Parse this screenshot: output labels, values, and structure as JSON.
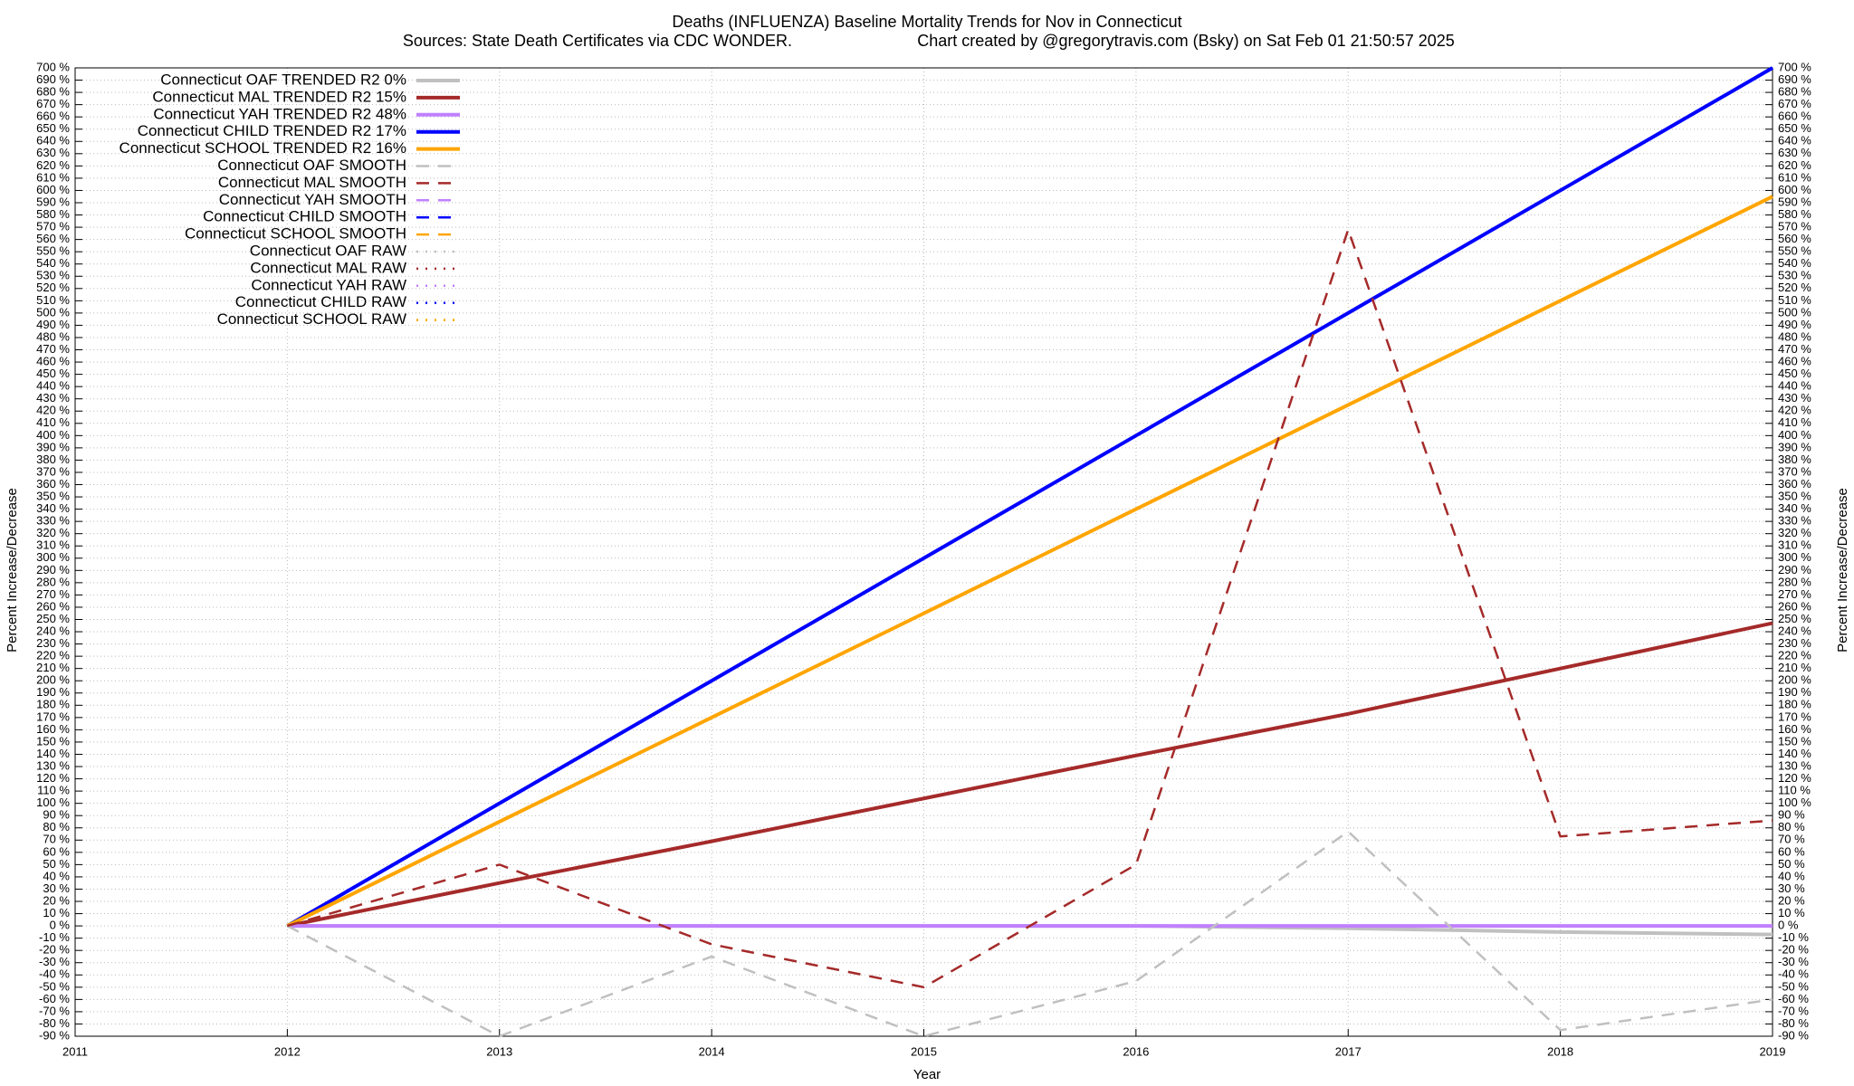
{
  "chart_data": {
    "type": "line",
    "title": "Deaths (INFLUENZA)  Baseline Mortality Trends for Nov in Connecticut",
    "subtitle_left": "Sources: State Death Certificates via CDC WONDER.",
    "subtitle_right": "Chart created by @gregorytravis.com (Bsky) on Sat Feb 01 21:50:57 2025",
    "x_label": "Year",
    "y_label": "Percent Increase/Decrease",
    "y2_label": "Percent Increase/Decrease",
    "x": [
      2012,
      2013,
      2014,
      2015,
      2016,
      2017,
      2018,
      2019
    ],
    "xlim": [
      2011,
      2019
    ],
    "xticks": [
      2011,
      2012,
      2013,
      2014,
      2015,
      2016,
      2017,
      2018,
      2019
    ],
    "ylim": [
      -90,
      700
    ],
    "yticks": [
      {
        "value": -90,
        "label": "-90 %"
      },
      {
        "value": -80,
        "label": "-80 %"
      },
      {
        "value": -70,
        "label": "-70 %"
      },
      {
        "value": -60,
        "label": "-60 %"
      },
      {
        "value": -50,
        "label": "-50 %"
      },
      {
        "value": -40,
        "label": "-40 %"
      },
      {
        "value": -30,
        "label": "-30 %"
      },
      {
        "value": -20,
        "label": "-20 %"
      },
      {
        "value": -10,
        "label": "-10 %"
      },
      {
        "value": 0,
        "label": "0 %"
      },
      {
        "value": 10,
        "label": "10 %"
      },
      {
        "value": 20,
        "label": "20 %"
      },
      {
        "value": 30,
        "label": "30 %"
      },
      {
        "value": 40,
        "label": "40 %"
      },
      {
        "value": 50,
        "label": "50 %"
      },
      {
        "value": 60,
        "label": "60 %"
      },
      {
        "value": 70,
        "label": "70 %"
      },
      {
        "value": 80,
        "label": "80 %"
      },
      {
        "value": 90,
        "label": "90 %"
      },
      {
        "value": 100,
        "label": "100 %"
      },
      {
        "value": 110,
        "label": "110 %"
      },
      {
        "value": 120,
        "label": "120 %"
      },
      {
        "value": 130,
        "label": "130 %"
      },
      {
        "value": 140,
        "label": "140 %"
      },
      {
        "value": 150,
        "label": "150 %"
      },
      {
        "value": 160,
        "label": "160 %"
      },
      {
        "value": 170,
        "label": "170 %"
      },
      {
        "value": 180,
        "label": "180 %"
      },
      {
        "value": 190,
        "label": "190 %"
      },
      {
        "value": 200,
        "label": "200 %"
      },
      {
        "value": 210,
        "label": "210 %"
      },
      {
        "value": 220,
        "label": "220 %"
      },
      {
        "value": 230,
        "label": "230 %"
      },
      {
        "value": 240,
        "label": "240 %"
      },
      {
        "value": 250,
        "label": "250 %"
      },
      {
        "value": 260,
        "label": "260 %"
      },
      {
        "value": 270,
        "label": "270 %"
      },
      {
        "value": 280,
        "label": "280 %"
      },
      {
        "value": 290,
        "label": "290 %"
      },
      {
        "value": 300,
        "label": "300 %"
      },
      {
        "value": 310,
        "label": "310 %"
      },
      {
        "value": 320,
        "label": "320 %"
      },
      {
        "value": 330,
        "label": "330 %"
      },
      {
        "value": 340,
        "label": "340 %"
      },
      {
        "value": 350,
        "label": "350 %"
      },
      {
        "value": 360,
        "label": "360 %"
      },
      {
        "value": 370,
        "label": "370 %"
      },
      {
        "value": 380,
        "label": "380 %"
      },
      {
        "value": 390,
        "label": "390 %"
      },
      {
        "value": 400,
        "label": "400 %"
      },
      {
        "value": 410,
        "label": "410 %"
      },
      {
        "value": 420,
        "label": "420 %"
      },
      {
        "value": 430,
        "label": "430 %"
      },
      {
        "value": 440,
        "label": "440 %"
      },
      {
        "value": 450,
        "label": "450 %"
      },
      {
        "value": 460,
        "label": "460 %"
      },
      {
        "value": 470,
        "label": "470 %"
      },
      {
        "value": 480,
        "label": "480 %"
      },
      {
        "value": 490,
        "label": "490 %"
      },
      {
        "value": 500,
        "label": "500 %"
      },
      {
        "value": 510,
        "label": "510 %"
      },
      {
        "value": 520,
        "label": "520 %"
      },
      {
        "value": 530,
        "label": "530 %"
      },
      {
        "value": 540,
        "label": "540 %"
      },
      {
        "value": 550,
        "label": "550 %"
      },
      {
        "value": 560,
        "label": "560 %"
      },
      {
        "value": 570,
        "label": "570 %"
      },
      {
        "value": 580,
        "label": "580 %"
      },
      {
        "value": 590,
        "label": "590 %"
      },
      {
        "value": 600,
        "label": "600 %"
      },
      {
        "value": 610,
        "label": "610 %"
      },
      {
        "value": 620,
        "label": "620 %"
      },
      {
        "value": 630,
        "label": "630 %"
      },
      {
        "value": 640,
        "label": "640 %"
      },
      {
        "value": 650,
        "label": "650 %"
      },
      {
        "value": 660,
        "label": "660 %"
      },
      {
        "value": 670,
        "label": "670 %"
      },
      {
        "value": 680,
        "label": "680 %"
      },
      {
        "value": 690,
        "label": "690 %"
      },
      {
        "value": 700,
        "label": "700 %"
      }
    ],
    "grid": true,
    "legend": "top-left",
    "series": [
      {
        "name": "Connecticut OAF TRENDED R2  0%",
        "color": "#c0c0c0",
        "style": "solid",
        "values": [
          0,
          0,
          0,
          0,
          0,
          -2,
          -5,
          -7
        ]
      },
      {
        "name": "Connecticut MAL TRENDED R2  15%",
        "color": "#a52a2a",
        "style": "solid",
        "values": [
          0,
          35,
          69,
          104,
          139,
          173,
          210,
          247
        ]
      },
      {
        "name": "Connecticut YAH TRENDED R2  48%",
        "color": "#c080ff",
        "style": "solid",
        "values": [
          0,
          0,
          0,
          0,
          0,
          0,
          0,
          0
        ]
      },
      {
        "name": "Connecticut CHILD TRENDED R2  17%",
        "color": "#0000ff",
        "style": "solid",
        "values": [
          0,
          100,
          200,
          300,
          400,
          500,
          600,
          700
        ]
      },
      {
        "name": "Connecticut SCHOOL TRENDED R2  16%",
        "color": "#ffa500",
        "style": "solid",
        "values": [
          0,
          85,
          170,
          255,
          340,
          425,
          510,
          595
        ]
      },
      {
        "name": "Connecticut OAF SMOOTH",
        "color": "#c0c0c0",
        "style": "dashed",
        "values": [
          0,
          -90,
          -25,
          -90,
          -45,
          77,
          -85,
          -60
        ]
      },
      {
        "name": "Connecticut MAL SMOOTH",
        "color": "#a52a2a",
        "style": "dashed",
        "values": [
          0,
          50,
          -15,
          -50,
          50,
          568,
          73,
          86
        ]
      },
      {
        "name": "Connecticut YAH SMOOTH",
        "color": "#c080ff",
        "style": "dashed",
        "values": [
          null,
          null,
          null,
          null,
          null,
          null,
          null,
          null
        ]
      },
      {
        "name": "Connecticut CHILD SMOOTH",
        "color": "#0000ff",
        "style": "dashed",
        "values": [
          null,
          null,
          null,
          null,
          null,
          null,
          null,
          null
        ]
      },
      {
        "name": "Connecticut SCHOOL SMOOTH",
        "color": "#ffa500",
        "style": "dashed",
        "values": [
          null,
          null,
          null,
          null,
          null,
          null,
          null,
          null
        ]
      },
      {
        "name": "Connecticut OAF RAW",
        "color": "#c0c0c0",
        "style": "dotted",
        "values": [
          null,
          null,
          null,
          null,
          null,
          null,
          null,
          null
        ]
      },
      {
        "name": "Connecticut MAL RAW",
        "color": "#a52a2a",
        "style": "dotted",
        "values": [
          null,
          null,
          null,
          null,
          null,
          null,
          null,
          null
        ]
      },
      {
        "name": "Connecticut YAH RAW",
        "color": "#c080ff",
        "style": "dotted",
        "values": [
          null,
          null,
          null,
          null,
          null,
          null,
          null,
          null
        ]
      },
      {
        "name": "Connecticut CHILD RAW",
        "color": "#0000ff",
        "style": "dotted",
        "values": [
          null,
          null,
          null,
          null,
          null,
          null,
          null,
          null
        ]
      },
      {
        "name": "Connecticut SCHOOL RAW",
        "color": "#ffa500",
        "style": "dotted",
        "values": [
          null,
          null,
          null,
          null,
          null,
          null,
          null,
          null
        ]
      }
    ]
  }
}
